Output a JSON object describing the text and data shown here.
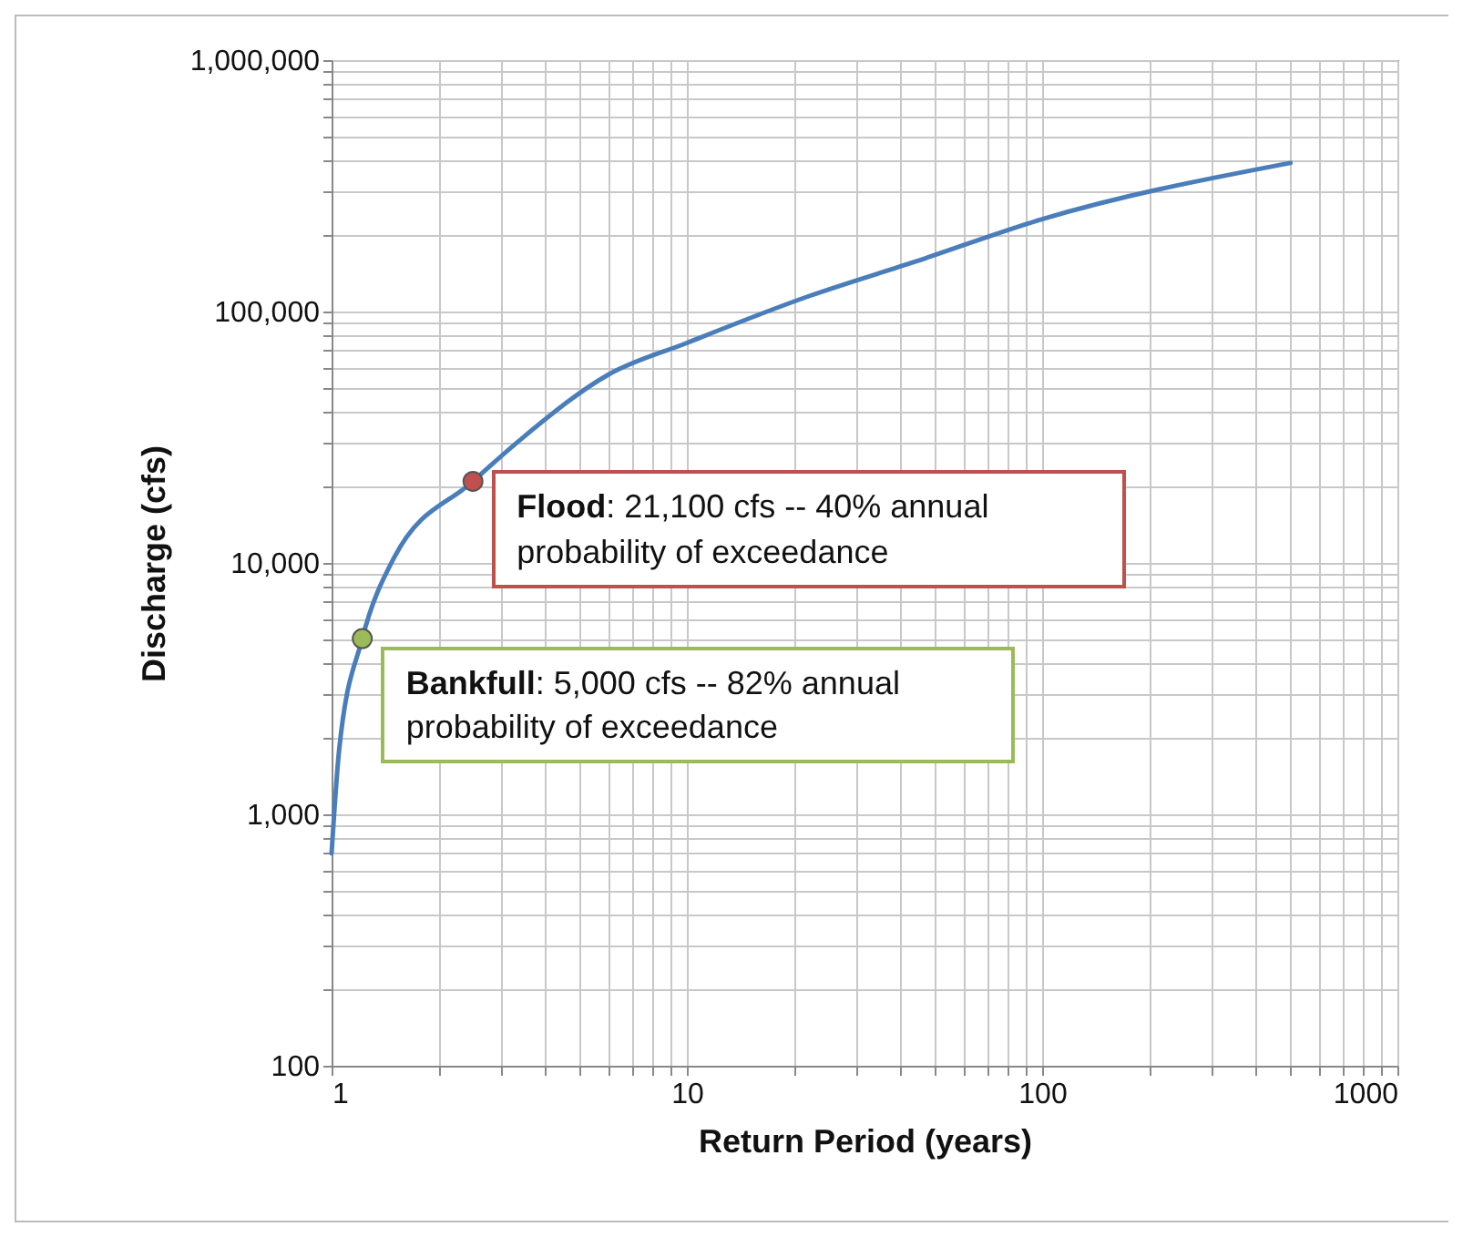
{
  "chart_data": {
    "type": "line",
    "xlabel": "Return Period (years)",
    "ylabel": "Discharge (cfs)",
    "log": "xy",
    "grid": true,
    "xlim": [
      1,
      1000
    ],
    "xticks": [
      1,
      10,
      100,
      1000
    ],
    "ylim": [
      100,
      1000000
    ],
    "yticks": [
      {
        "value": 100,
        "label": "100"
      },
      {
        "value": 1000,
        "label": "1,000"
      },
      {
        "value": 10000,
        "label": "10,000"
      },
      {
        "value": 100000,
        "label": "100,000"
      },
      {
        "value": 1000000,
        "label": "1,000,000"
      }
    ],
    "series": [
      {
        "color": "#4a7ebb",
        "marker": "none",
        "x": [
          1,
          1.05,
          1.22,
          1.5,
          2.5,
          3.5,
          6,
          10,
          22,
          44,
          100,
          500
        ],
        "values": [
          700,
          1800,
          5000,
          10500,
          21100,
          32000,
          56000,
          75000,
          115000,
          158000,
          233000,
          390000
        ]
      },
      {
        "type": "scatter",
        "color": "#9bbb59",
        "marker": "circle",
        "x": [
          1.22
        ],
        "values": [
          5000
        ]
      },
      {
        "type": "scatter",
        "color": "#c0504d",
        "marker": "circle",
        "x": [
          2.5
        ],
        "values": [
          21100
        ]
      }
    ],
    "annotations": [
      {
        "text": "Bankfull: 5,000 cfs -- 82% annual probability of exceedance",
        "x": 1.22,
        "y": 5000
      },
      {
        "text": "Flood: 21,100 cfs -- 40% annual probability of exceedance",
        "x": 2.5,
        "y": 21100
      }
    ]
  }
}
